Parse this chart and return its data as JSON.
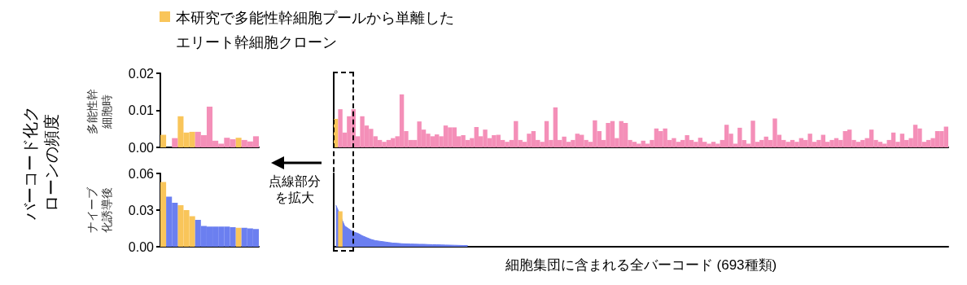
{
  "chart_data": [
    {
      "type": "bar",
      "ylabel": "多能性幹細胞時",
      "annotations": [
        "バーコード化クローンの頻度"
      ],
      "legend": "top",
      "stacked": true,
      "tick_labels": "y",
      "categories": [
        null,
        null,
        null,
        null,
        null,
        null,
        null,
        null,
        null,
        null,
        null,
        null,
        null,
        null,
        null,
        null,
        null
      ],
      "ylim": [
        0,
        0.02
      ],
      "yticks": [
        {
          "value": 0,
          "label": "0.00"
        },
        {
          "value": 0.01,
          "label": "0.01"
        },
        {
          "value": 0.02,
          "label": "0.02"
        }
      ],
      "series": [
        {
          "name": "本研究で多能性幹細胞プールから単離したエリート幹細胞クローン",
          "color": "#f9c55a",
          "values": [
            0.0034,
            null,
            null,
            0.0084,
            0.004,
            0.0042,
            null,
            null,
            null,
            null,
            null,
            null,
            null,
            0.0026,
            null,
            null,
            null
          ]
        },
        {
          "color": "#f48fb8",
          "values": [
            null,
            0,
            0.0025,
            null,
            null,
            null,
            0.0042,
            0.0033,
            0.011,
            0.0018,
            0.001,
            0.0026,
            0.0022,
            null,
            0.002,
            0.0016,
            0.003
          ]
        }
      ]
    },
    {
      "type": "bar",
      "ylabel": "ナイーブ化誘導後",
      "stacked": true,
      "tick_labels": "y",
      "categories": [
        null,
        null,
        null,
        null,
        null,
        null,
        null,
        null,
        null,
        null,
        null,
        null,
        null,
        null,
        null,
        null,
        null
      ],
      "ylim": [
        0,
        0.06
      ],
      "yticks": [
        {
          "value": 0,
          "label": "0.00"
        },
        {
          "value": 0.03,
          "label": "0.03"
        },
        {
          "value": 0.06,
          "label": "0.06"
        }
      ],
      "series": [
        {
          "color": "#f9c55a",
          "values": [
            0.053,
            null,
            null,
            0.034,
            0.03,
            0.025,
            null,
            null,
            null,
            null,
            null,
            null,
            null,
            0.0155,
            null,
            null,
            null
          ]
        },
        {
          "color": "#6b7ff0",
          "values": [
            null,
            0.041,
            0.036,
            null,
            null,
            null,
            0.022,
            0.017,
            0.0165,
            0.0165,
            0.0165,
            0.0165,
            0.016,
            null,
            0.0155,
            0.015,
            0.0145
          ]
        }
      ]
    },
    {
      "type": "bar",
      "annotations": [
        "点線部分を拡大"
      ],
      "stacked": true,
      "tick_labels": false,
      "ylim": [
        0,
        0.02
      ],
      "categories": [
        null,
        null,
        null,
        null,
        null,
        null,
        null,
        null,
        null,
        null,
        null,
        null,
        null,
        null,
        null,
        null,
        null,
        null,
        null,
        null,
        null,
        null,
        null,
        null,
        null,
        null,
        null,
        null,
        null,
        null,
        null,
        null,
        null,
        null,
        null,
        null,
        null,
        null,
        null,
        null,
        null,
        null,
        null,
        null,
        null,
        null,
        null,
        null,
        null,
        null,
        null,
        null,
        null,
        null,
        null,
        null,
        null,
        null,
        null,
        null,
        null,
        null,
        null,
        null,
        null,
        null,
        null,
        null,
        null,
        null,
        null,
        null,
        null,
        null,
        null,
        null,
        null,
        null,
        null,
        null,
        null,
        null,
        null,
        null,
        null,
        null,
        null,
        null,
        null,
        null,
        null,
        null,
        null,
        null,
        null,
        null,
        null,
        null,
        null,
        null,
        null,
        null,
        null,
        null,
        null,
        null,
        null,
        null,
        null,
        null,
        null,
        null,
        null,
        null,
        null,
        null,
        null,
        null,
        null,
        null,
        null,
        null,
        null,
        null,
        null,
        null,
        null,
        null,
        null,
        null,
        null,
        null,
        null,
        null,
        null,
        null,
        null,
        null,
        null,
        null
      ],
      "series": [
        {
          "color": "#f9c55a",
          "values": [
            0.0077,
            null,
            null,
            null,
            null,
            null,
            null,
            null,
            null,
            null,
            null,
            null,
            null,
            null,
            null,
            null,
            null,
            null,
            null,
            null,
            null,
            null,
            null,
            null,
            null,
            null,
            null,
            null,
            null,
            null,
            null,
            null,
            null,
            null,
            null,
            null,
            null,
            null,
            null,
            null,
            null,
            null,
            null,
            null,
            null,
            null,
            null,
            null,
            null,
            null,
            null,
            null,
            null,
            null,
            null,
            null,
            null,
            null,
            null,
            null,
            null,
            null,
            null,
            null,
            null,
            null,
            null,
            null,
            null,
            null,
            null,
            null,
            null,
            null,
            null,
            null,
            null,
            null,
            null,
            null,
            null,
            null,
            null,
            null,
            null,
            null,
            null,
            null,
            null,
            null,
            null,
            null,
            null,
            null,
            null,
            null,
            null,
            null,
            null,
            null,
            null,
            null,
            null,
            null,
            null,
            null,
            null,
            null,
            null,
            null,
            null,
            null,
            null,
            null,
            null,
            null,
            null,
            null,
            null,
            null,
            null,
            null,
            null,
            null,
            null,
            null,
            null,
            null,
            null,
            null,
            null,
            null,
            null,
            null,
            null,
            null,
            null,
            null,
            null,
            null
          ]
        },
        {
          "color": "#f48fb8",
          "values": [
            null,
            0.0103,
            0.004,
            0.0084,
            0.0103,
            0.003,
            0.0084,
            0.0059,
            0.005,
            0.003,
            0.002,
            0.0015,
            0.002,
            0.0025,
            0.003,
            0.0143,
            0.0044,
            0.002,
            0.002,
            0.007,
            0.0048,
            0.0037,
            0.003,
            0.0035,
            0.003,
            0.0059,
            0.0054,
            0.0054,
            0.003,
            0.0033,
            0.002,
            0.0025,
            0.0055,
            0.003,
            0.0048,
            0.0025,
            0.0033,
            0.0034,
            0.002,
            0.0015,
            0.002,
            0.0071,
            0.002,
            0.0015,
            0.0037,
            0.0044,
            0.002,
            0.0015,
            0.0071,
            0.002,
            0.0108,
            0.002,
            0.0029,
            0.0015,
            0.002,
            0.0037,
            0.0034,
            0.002,
            0.0015,
            0.0073,
            0.0044,
            0.002,
            0.0066,
            0.0071,
            0.0025,
            0.0071,
            0.0066,
            0.002,
            0.0015,
            0.001,
            0.0018,
            0.001,
            0.002,
            0.0051,
            0.0044,
            0.0051,
            0.002,
            0.0025,
            0.0015,
            0.002,
            0.0033,
            0.002,
            0.0015,
            0.0026,
            0.0015,
            0.001,
            0.0015,
            0.001,
            0.002,
            0.0061,
            0.0037,
            0.001,
            0.0053,
            0.002,
            0.001,
            0.0072,
            0.0015,
            0.002,
            0.0029,
            0.002,
            0.0078,
            0.0034,
            0.002,
            0.0015,
            0.002,
            0.0015,
            0.0025,
            0.002,
            0.0037,
            0.0015,
            0.002,
            0.0034,
            0.0015,
            0.002,
            0.0025,
            0.002,
            0.0044,
            0.0048,
            0.002,
            0.0015,
            0.002,
            0.0025,
            0.0048,
            0.002,
            0.0015,
            0.001,
            0.002,
            0.004,
            0.0015,
            0.0037,
            0.002,
            0.0025,
            0.0061,
            0.0051,
            0.0015,
            0.002,
            0.0025,
            0.0044,
            0.0044,
            0.0056
          ]
        }
      ]
    },
    {
      "type": "bar",
      "xlabel": "細胞集団に含まれる全バーコード (693種類)",
      "stacked": true,
      "tick_labels": false,
      "ylim": [
        0,
        0.06
      ],
      "categories": [
        null,
        null,
        null,
        null,
        null,
        null,
        null,
        null,
        null,
        null,
        null,
        null,
        null,
        null,
        null,
        null,
        null,
        null,
        null,
        null,
        null,
        null,
        null,
        null,
        null,
        null,
        null,
        null,
        null,
        null,
        null,
        null,
        null,
        null,
        null,
        null,
        null,
        null,
        null,
        null,
        null,
        null,
        null,
        null,
        null,
        null,
        null,
        null,
        null,
        null,
        null,
        null,
        null,
        null,
        null,
        null,
        null,
        null,
        null,
        null,
        null,
        null,
        null,
        null,
        null,
        null,
        null,
        null,
        null,
        null,
        null,
        null,
        null,
        null,
        null,
        null,
        null,
        null,
        null,
        null,
        null,
        null,
        null,
        null,
        null,
        null,
        null,
        null,
        null,
        null,
        null,
        null,
        null,
        null,
        null,
        null,
        null,
        null,
        null,
        null,
        null,
        null,
        null,
        null,
        null,
        null,
        null,
        null,
        null,
        null,
        null,
        null,
        null,
        null,
        null,
        null,
        null,
        null,
        null,
        null,
        null,
        null,
        null,
        null,
        null,
        null,
        null,
        null,
        null,
        null,
        null,
        null,
        null,
        null,
        null,
        null,
        null,
        null,
        null,
        null
      ],
      "series": [
        {
          "color": "#f9c55a",
          "values": [
            null,
            0.029,
            null,
            null,
            null,
            null,
            null,
            null,
            null,
            null,
            null,
            null,
            null,
            null,
            null,
            null,
            null,
            null,
            null,
            null,
            null,
            null,
            null,
            null,
            null,
            null,
            null,
            null,
            null,
            null,
            null,
            null,
            null,
            null,
            null,
            null,
            null,
            null,
            null,
            null,
            null,
            null,
            null,
            null,
            null,
            null,
            null,
            null,
            null,
            null,
            null,
            null,
            null,
            null,
            null,
            null,
            null,
            null,
            null,
            null,
            null,
            null,
            null,
            null,
            null,
            null,
            null,
            null,
            null,
            null,
            null,
            null,
            null,
            null,
            null,
            null,
            null,
            null,
            null,
            null,
            null,
            null,
            null,
            null,
            null,
            null,
            null,
            null,
            null,
            null,
            null,
            null,
            null,
            null,
            null,
            null,
            null,
            null,
            null,
            null,
            null,
            null,
            null,
            null,
            null,
            null,
            null,
            null,
            null,
            null,
            null,
            null,
            null,
            null,
            null,
            null,
            null,
            null,
            null,
            null,
            null,
            null,
            null,
            null,
            null,
            null,
            null,
            null,
            null,
            null,
            null,
            null,
            null,
            null,
            null,
            null,
            null,
            null,
            null,
            null
          ]
        },
        {
          "type": "area",
          "color": "#6b7ff0",
          "values": [
            0.034,
            null,
            0.017,
            0.0145,
            0.012,
            0.011,
            0.009,
            0.0075,
            0.006,
            0.005,
            0.0045,
            0.004,
            0.0035,
            0.003,
            0.0028,
            0.0025,
            0.0023,
            0.0022,
            0.0021,
            0.002,
            0.002,
            0.0018,
            0.0017,
            0.0016,
            0.0015,
            0.0014,
            0.0013,
            0.0012,
            0.0011,
            0.001,
            0.001,
            null,
            null,
            null,
            null,
            null,
            null,
            null,
            null,
            null,
            null,
            null,
            null,
            null,
            null,
            null,
            null,
            null,
            null,
            null,
            null,
            null,
            null,
            null,
            null,
            null,
            null,
            null,
            null,
            null,
            null,
            null,
            null,
            null,
            null,
            null,
            null,
            null,
            null,
            null,
            null,
            null,
            null,
            null,
            null,
            null,
            null,
            null,
            null,
            null,
            null,
            null,
            null,
            null,
            null,
            null,
            null,
            null,
            null,
            null,
            null,
            null,
            null,
            null,
            null,
            null,
            null,
            null,
            null,
            null,
            null,
            null,
            null,
            null,
            null,
            null,
            null,
            null,
            null,
            null,
            null,
            null,
            null,
            null,
            null,
            null,
            null,
            null,
            null,
            null,
            null,
            null,
            null,
            null,
            null,
            null,
            null,
            null,
            null,
            null,
            null,
            null,
            null,
            null,
            null,
            null,
            null,
            null,
            null,
            null
          ]
        }
      ]
    }
  ]
}
